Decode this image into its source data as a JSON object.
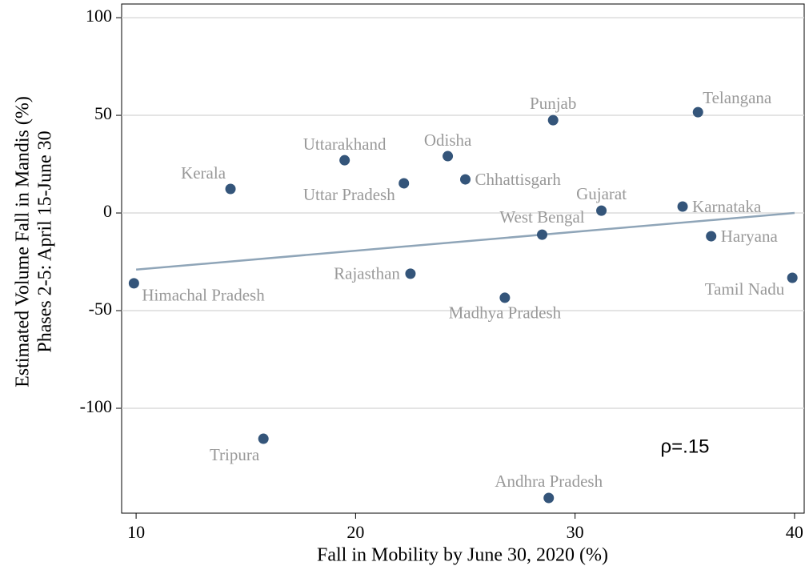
{
  "chart_data": {
    "type": "scatter",
    "xlabel": "Fall in Mobility by June 30, 2020 (%)",
    "ylabel": [
      "Estimated Volume Fall in Mandis (%)",
      "Phases 2-5: April 15-June 30"
    ],
    "annotation": "ρ=.15",
    "labels": [
      "Himachal Pradesh",
      "Kerala",
      "Tripura",
      "Uttarakhand",
      "Uttar Pradesh",
      "Rajasthan",
      "Odisha",
      "Chhattisgarh",
      "Madhya Pradesh",
      "West Bengal",
      "Andhra Pradesh",
      "Punjab",
      "Gujarat",
      "Karnataka",
      "Telangana",
      "Haryana",
      "Tamil Nadu"
    ],
    "x": [
      9.9,
      14.3,
      15.8,
      19.5,
      22.2,
      22.5,
      24.2,
      25.0,
      26.8,
      28.5,
      28.8,
      29.0,
      31.2,
      34.9,
      35.6,
      36.2,
      39.9
    ],
    "y": [
      -36,
      12.3,
      -115.6,
      27,
      15.2,
      -31.1,
      29.1,
      17.2,
      -43.4,
      -11.1,
      -145.9,
      47.5,
      1.2,
      3.3,
      51.6,
      -11.9,
      -33.2
    ],
    "color": "#34557a",
    "fit_line": {
      "x": [
        10,
        40
      ],
      "y": [
        -29,
        0
      ],
      "color": "#8fa5b8"
    },
    "xlim": [
      9.34,
      40.44
    ],
    "ylim": [
      -153.7,
      107
    ],
    "xticks": [
      10,
      20,
      30,
      40
    ],
    "yticks": [
      -100,
      -50,
      0,
      50,
      100
    ],
    "grid": true
  }
}
